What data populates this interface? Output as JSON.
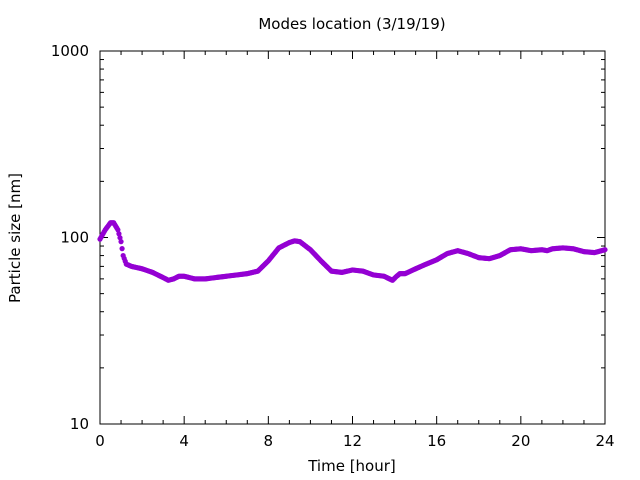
{
  "chart_data": {
    "type": "scatter",
    "title": "Modes location (3/19/19)",
    "xlabel": "Time [hour]",
    "ylabel": "Particle size [nm]",
    "xlim": [
      0,
      24
    ],
    "ylim": [
      10,
      1000
    ],
    "yscale": "log",
    "xticks": [
      "0",
      "4",
      "8",
      "12",
      "16",
      "20",
      "24"
    ],
    "yticks": [
      "10",
      "100",
      "1000"
    ],
    "grid": false,
    "legend": "none",
    "marker_color": "#9400d3",
    "series": [
      {
        "x": [
          0.0,
          0.25,
          0.5,
          0.65,
          0.85,
          1.0,
          1.1,
          1.25,
          1.5,
          2.0,
          2.5,
          3.0,
          3.25,
          3.5,
          3.75,
          4.0,
          4.5,
          5.0,
          5.5,
          6.0,
          6.5,
          7.0,
          7.5,
          8.0,
          8.5,
          9.0,
          9.25,
          9.5,
          10.0,
          10.5,
          11.0,
          11.5,
          12.0,
          12.5,
          13.0,
          13.5,
          13.9,
          14.1,
          14.25,
          14.5,
          15.0,
          15.5,
          16.0,
          16.5,
          17.0,
          17.5,
          18.0,
          18.5,
          19.0,
          19.5,
          20.0,
          20.5,
          21.0,
          21.25,
          21.5,
          22.0,
          22.5,
          23.0,
          23.5,
          24.0
        ],
        "y": [
          98,
          110,
          120,
          120,
          110,
          95,
          80,
          72,
          70,
          68,
          65,
          61,
          59,
          60,
          62,
          62,
          60,
          60,
          61,
          62,
          63,
          64,
          66,
          75,
          88,
          94,
          96,
          95,
          86,
          75,
          66,
          65,
          67,
          66,
          63,
          62,
          59,
          62,
          64,
          64,
          68,
          72,
          76,
          82,
          85,
          82,
          78,
          77,
          80,
          86,
          87,
          85,
          86,
          85,
          87,
          88,
          87,
          84,
          83,
          86
        ]
      }
    ]
  }
}
